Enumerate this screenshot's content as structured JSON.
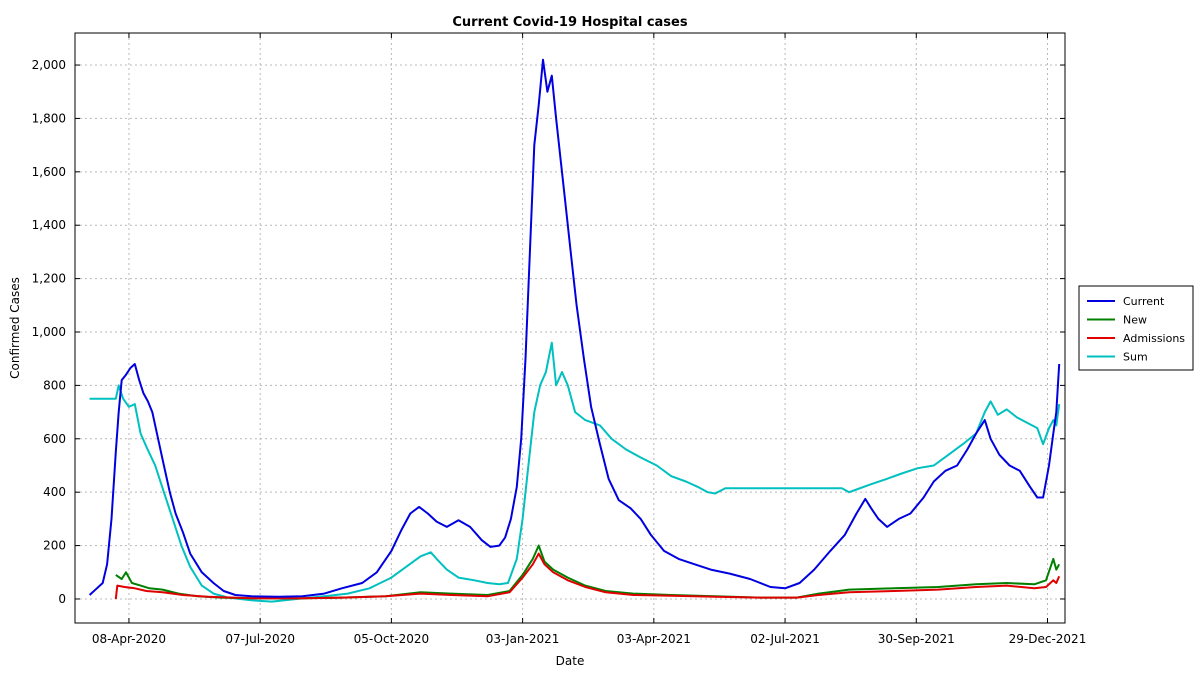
{
  "chart_data": {
    "type": "line",
    "title": "Current Covid-19 Hospital cases",
    "xlabel": "Date",
    "ylabel": "Confirmed Cases",
    "ylim": [
      -90,
      2120
    ],
    "xlim": [
      "2020-03-02",
      "2022-01-10"
    ],
    "grid": true,
    "legend_position": "right",
    "x_ticks": [
      "2020-04-08",
      "2020-07-07",
      "2020-10-05",
      "2021-01-03",
      "2021-04-03",
      "2021-07-02",
      "2021-09-30",
      "2021-12-29"
    ],
    "x_tick_labels": [
      "08-Apr-2020",
      "07-Jul-2020",
      "05-Oct-2020",
      "03-Jan-2021",
      "03-Apr-2021",
      "02-Jul-2021",
      "30-Sep-2021",
      "29-Dec-2021"
    ],
    "y_ticks": [
      0,
      200,
      400,
      600,
      800,
      1000,
      1200,
      1400,
      1600,
      1800,
      2000
    ],
    "y_tick_labels": [
      "0",
      "200",
      "400",
      "600",
      "800",
      "1,000",
      "1,200",
      "1,400",
      "1,600",
      "1,800",
      "2,000"
    ],
    "series": [
      {
        "name": "Current",
        "color": "#0000e0",
        "points": [
          [
            "2020-03-12",
            15
          ],
          [
            "2020-03-17",
            40
          ],
          [
            "2020-03-21",
            60
          ],
          [
            "2020-03-24",
            130
          ],
          [
            "2020-03-27",
            300
          ],
          [
            "2020-03-30",
            550
          ],
          [
            "2020-04-01",
            700
          ],
          [
            "2020-04-03",
            820
          ],
          [
            "2020-04-06",
            840
          ],
          [
            "2020-04-09",
            865
          ],
          [
            "2020-04-12",
            880
          ],
          [
            "2020-04-15",
            820
          ],
          [
            "2020-04-18",
            770
          ],
          [
            "2020-04-21",
            740
          ],
          [
            "2020-04-24",
            700
          ],
          [
            "2020-04-28",
            600
          ],
          [
            "2020-05-02",
            500
          ],
          [
            "2020-05-06",
            400
          ],
          [
            "2020-05-10",
            320
          ],
          [
            "2020-05-15",
            250
          ],
          [
            "2020-05-20",
            170
          ],
          [
            "2020-05-28",
            100
          ],
          [
            "2020-06-05",
            60
          ],
          [
            "2020-06-12",
            30
          ],
          [
            "2020-06-20",
            15
          ],
          [
            "2020-07-01",
            10
          ],
          [
            "2020-07-20",
            8
          ],
          [
            "2020-08-05",
            10
          ],
          [
            "2020-08-20",
            20
          ],
          [
            "2020-09-01",
            40
          ],
          [
            "2020-09-15",
            60
          ],
          [
            "2020-09-25",
            100
          ],
          [
            "2020-10-05",
            180
          ],
          [
            "2020-10-12",
            260
          ],
          [
            "2020-10-18",
            320
          ],
          [
            "2020-10-24",
            345
          ],
          [
            "2020-10-30",
            320
          ],
          [
            "2020-11-05",
            290
          ],
          [
            "2020-11-12",
            270
          ],
          [
            "2020-11-20",
            295
          ],
          [
            "2020-11-28",
            270
          ],
          [
            "2020-12-06",
            220
          ],
          [
            "2020-12-12",
            195
          ],
          [
            "2020-12-18",
            200
          ],
          [
            "2020-12-22",
            230
          ],
          [
            "2020-12-26",
            300
          ],
          [
            "2020-12-30",
            420
          ],
          [
            "2021-01-02",
            600
          ],
          [
            "2021-01-05",
            900
          ],
          [
            "2021-01-08",
            1300
          ],
          [
            "2021-01-11",
            1700
          ],
          [
            "2021-01-14",
            1850
          ],
          [
            "2021-01-17",
            2020
          ],
          [
            "2021-01-20",
            1900
          ],
          [
            "2021-01-23",
            1960
          ],
          [
            "2021-01-26",
            1800
          ],
          [
            "2021-01-29",
            1650
          ],
          [
            "2021-02-01",
            1500
          ],
          [
            "2021-02-05",
            1300
          ],
          [
            "2021-02-09",
            1100
          ],
          [
            "2021-02-14",
            900
          ],
          [
            "2021-02-19",
            720
          ],
          [
            "2021-02-25",
            580
          ],
          [
            "2021-03-03",
            450
          ],
          [
            "2021-03-10",
            370
          ],
          [
            "2021-03-18",
            340
          ],
          [
            "2021-03-25",
            300
          ],
          [
            "2021-04-01",
            240
          ],
          [
            "2021-04-10",
            180
          ],
          [
            "2021-04-20",
            150
          ],
          [
            "2021-05-01",
            130
          ],
          [
            "2021-05-12",
            110
          ],
          [
            "2021-05-25",
            95
          ],
          [
            "2021-06-08",
            75
          ],
          [
            "2021-06-22",
            45
          ],
          [
            "2021-07-02",
            40
          ],
          [
            "2021-07-12",
            60
          ],
          [
            "2021-07-22",
            110
          ],
          [
            "2021-08-02",
            180
          ],
          [
            "2021-08-12",
            240
          ],
          [
            "2021-08-20",
            320
          ],
          [
            "2021-08-26",
            375
          ],
          [
            "2021-08-30",
            340
          ],
          [
            "2021-09-04",
            300
          ],
          [
            "2021-09-10",
            270
          ],
          [
            "2021-09-18",
            300
          ],
          [
            "2021-09-26",
            320
          ],
          [
            "2021-10-05",
            380
          ],
          [
            "2021-10-12",
            440
          ],
          [
            "2021-10-20",
            480
          ],
          [
            "2021-10-28",
            500
          ],
          [
            "2021-11-04",
            560
          ],
          [
            "2021-11-10",
            620
          ],
          [
            "2021-11-16",
            670
          ],
          [
            "2021-11-20",
            600
          ],
          [
            "2021-11-26",
            540
          ],
          [
            "2021-12-03",
            500
          ],
          [
            "2021-12-10",
            480
          ],
          [
            "2021-12-17",
            420
          ],
          [
            "2021-12-22",
            380
          ],
          [
            "2021-12-26",
            380
          ],
          [
            "2021-12-30",
            500
          ],
          [
            "2022-01-02",
            620
          ],
          [
            "2022-01-04",
            700
          ],
          [
            "2022-01-06",
            880
          ]
        ]
      },
      {
        "name": "New",
        "color": "#008000",
        "points": [
          [
            "2020-03-30",
            90
          ],
          [
            "2020-04-03",
            75
          ],
          [
            "2020-04-06",
            100
          ],
          [
            "2020-04-10",
            60
          ],
          [
            "2020-04-16",
            50
          ],
          [
            "2020-04-22",
            40
          ],
          [
            "2020-05-01",
            35
          ],
          [
            "2020-05-12",
            20
          ],
          [
            "2020-05-25",
            10
          ],
          [
            "2020-06-10",
            5
          ],
          [
            "2020-07-01",
            3
          ],
          [
            "2020-08-01",
            2
          ],
          [
            "2020-09-01",
            5
          ],
          [
            "2020-10-01",
            10
          ],
          [
            "2020-10-25",
            25
          ],
          [
            "2020-11-15",
            20
          ],
          [
            "2020-12-10",
            15
          ],
          [
            "2020-12-25",
            30
          ],
          [
            "2021-01-03",
            90
          ],
          [
            "2021-01-10",
            150
          ],
          [
            "2021-01-14",
            200
          ],
          [
            "2021-01-18",
            140
          ],
          [
            "2021-01-24",
            110
          ],
          [
            "2021-02-03",
            80
          ],
          [
            "2021-02-15",
            50
          ],
          [
            "2021-03-01",
            30
          ],
          [
            "2021-03-20",
            20
          ],
          [
            "2021-04-15",
            15
          ],
          [
            "2021-05-15",
            10
          ],
          [
            "2021-06-15",
            5
          ],
          [
            "2021-07-10",
            5
          ],
          [
            "2021-07-25",
            20
          ],
          [
            "2021-08-15",
            35
          ],
          [
            "2021-09-15",
            40
          ],
          [
            "2021-10-15",
            45
          ],
          [
            "2021-11-10",
            55
          ],
          [
            "2021-12-01",
            60
          ],
          [
            "2021-12-20",
            55
          ],
          [
            "2021-12-28",
            70
          ],
          [
            "2022-01-02",
            150
          ],
          [
            "2022-01-04",
            110
          ],
          [
            "2022-01-06",
            130
          ]
        ]
      },
      {
        "name": "Admissions",
        "color": "#e00000",
        "points": [
          [
            "2020-03-30",
            0
          ],
          [
            "2020-03-31",
            50
          ],
          [
            "2020-04-05",
            45
          ],
          [
            "2020-04-12",
            40
          ],
          [
            "2020-04-20",
            30
          ],
          [
            "2020-05-01",
            25
          ],
          [
            "2020-05-15",
            15
          ],
          [
            "2020-06-01",
            8
          ],
          [
            "2020-07-01",
            3
          ],
          [
            "2020-08-01",
            2
          ],
          [
            "2020-09-01",
            5
          ],
          [
            "2020-10-01",
            10
          ],
          [
            "2020-10-25",
            20
          ],
          [
            "2020-11-15",
            15
          ],
          [
            "2020-12-10",
            10
          ],
          [
            "2020-12-25",
            25
          ],
          [
            "2021-01-03",
            80
          ],
          [
            "2021-01-10",
            130
          ],
          [
            "2021-01-14",
            170
          ],
          [
            "2021-01-18",
            130
          ],
          [
            "2021-01-24",
            100
          ],
          [
            "2021-02-03",
            70
          ],
          [
            "2021-02-15",
            45
          ],
          [
            "2021-03-01",
            25
          ],
          [
            "2021-03-20",
            15
          ],
          [
            "2021-04-15",
            12
          ],
          [
            "2021-05-15",
            8
          ],
          [
            "2021-06-15",
            5
          ],
          [
            "2021-07-10",
            5
          ],
          [
            "2021-07-25",
            15
          ],
          [
            "2021-08-15",
            25
          ],
          [
            "2021-09-15",
            30
          ],
          [
            "2021-10-15",
            35
          ],
          [
            "2021-11-10",
            45
          ],
          [
            "2021-12-01",
            50
          ],
          [
            "2021-12-20",
            40
          ],
          [
            "2021-12-28",
            45
          ],
          [
            "2022-01-02",
            70
          ],
          [
            "2022-01-04",
            60
          ],
          [
            "2022-01-06",
            85
          ]
        ]
      },
      {
        "name": "Sum",
        "color": "#00c0c0",
        "points": [
          [
            "2020-03-12",
            750
          ],
          [
            "2020-03-30",
            750
          ],
          [
            "2020-04-01",
            800
          ],
          [
            "2020-04-04",
            750
          ],
          [
            "2020-04-08",
            720
          ],
          [
            "2020-04-12",
            730
          ],
          [
            "2020-04-16",
            620
          ],
          [
            "2020-04-20",
            570
          ],
          [
            "2020-04-26",
            500
          ],
          [
            "2020-05-02",
            400
          ],
          [
            "2020-05-08",
            300
          ],
          [
            "2020-05-14",
            200
          ],
          [
            "2020-05-20",
            120
          ],
          [
            "2020-05-28",
            50
          ],
          [
            "2020-06-05",
            20
          ],
          [
            "2020-06-15",
            5
          ],
          [
            "2020-07-01",
            -5
          ],
          [
            "2020-07-15",
            -10
          ],
          [
            "2020-08-01",
            0
          ],
          [
            "2020-08-20",
            10
          ],
          [
            "2020-09-05",
            20
          ],
          [
            "2020-09-20",
            40
          ],
          [
            "2020-10-05",
            80
          ],
          [
            "2020-10-15",
            120
          ],
          [
            "2020-10-25",
            160
          ],
          [
            "2020-11-01",
            175
          ],
          [
            "2020-11-05",
            150
          ],
          [
            "2020-11-12",
            110
          ],
          [
            "2020-11-20",
            80
          ],
          [
            "2020-12-01",
            70
          ],
          [
            "2020-12-10",
            60
          ],
          [
            "2020-12-18",
            55
          ],
          [
            "2020-12-24",
            60
          ],
          [
            "2020-12-30",
            150
          ],
          [
            "2021-01-03",
            300
          ],
          [
            "2021-01-07",
            500
          ],
          [
            "2021-01-11",
            700
          ],
          [
            "2021-01-15",
            800
          ],
          [
            "2021-01-19",
            850
          ],
          [
            "2021-01-23",
            960
          ],
          [
            "2021-01-26",
            800
          ],
          [
            "2021-01-30",
            850
          ],
          [
            "2021-02-03",
            800
          ],
          [
            "2021-02-08",
            700
          ],
          [
            "2021-02-15",
            670
          ],
          [
            "2021-02-25",
            650
          ],
          [
            "2021-03-05",
            600
          ],
          [
            "2021-03-15",
            560
          ],
          [
            "2021-03-25",
            530
          ],
          [
            "2021-04-05",
            500
          ],
          [
            "2021-04-15",
            460
          ],
          [
            "2021-04-25",
            440
          ],
          [
            "2021-05-03",
            420
          ],
          [
            "2021-05-10",
            400
          ],
          [
            "2021-05-15",
            395
          ],
          [
            "2021-05-22",
            415
          ],
          [
            "2021-07-01",
            415
          ],
          [
            "2021-08-10",
            415
          ],
          [
            "2021-08-15",
            400
          ],
          [
            "2021-08-20",
            410
          ],
          [
            "2021-08-30",
            430
          ],
          [
            "2021-09-10",
            450
          ],
          [
            "2021-09-20",
            470
          ],
          [
            "2021-10-01",
            490
          ],
          [
            "2021-10-12",
            500
          ],
          [
            "2021-10-22",
            540
          ],
          [
            "2021-11-01",
            580
          ],
          [
            "2021-11-10",
            620
          ],
          [
            "2021-11-16",
            700
          ],
          [
            "2021-11-20",
            740
          ],
          [
            "2021-11-25",
            690
          ],
          [
            "2021-12-01",
            710
          ],
          [
            "2021-12-08",
            680
          ],
          [
            "2021-12-15",
            660
          ],
          [
            "2021-12-22",
            640
          ],
          [
            "2021-12-26",
            580
          ],
          [
            "2021-12-30",
            640
          ],
          [
            "2022-01-02",
            670
          ],
          [
            "2022-01-04",
            650
          ],
          [
            "2022-01-06",
            730
          ]
        ]
      }
    ]
  }
}
